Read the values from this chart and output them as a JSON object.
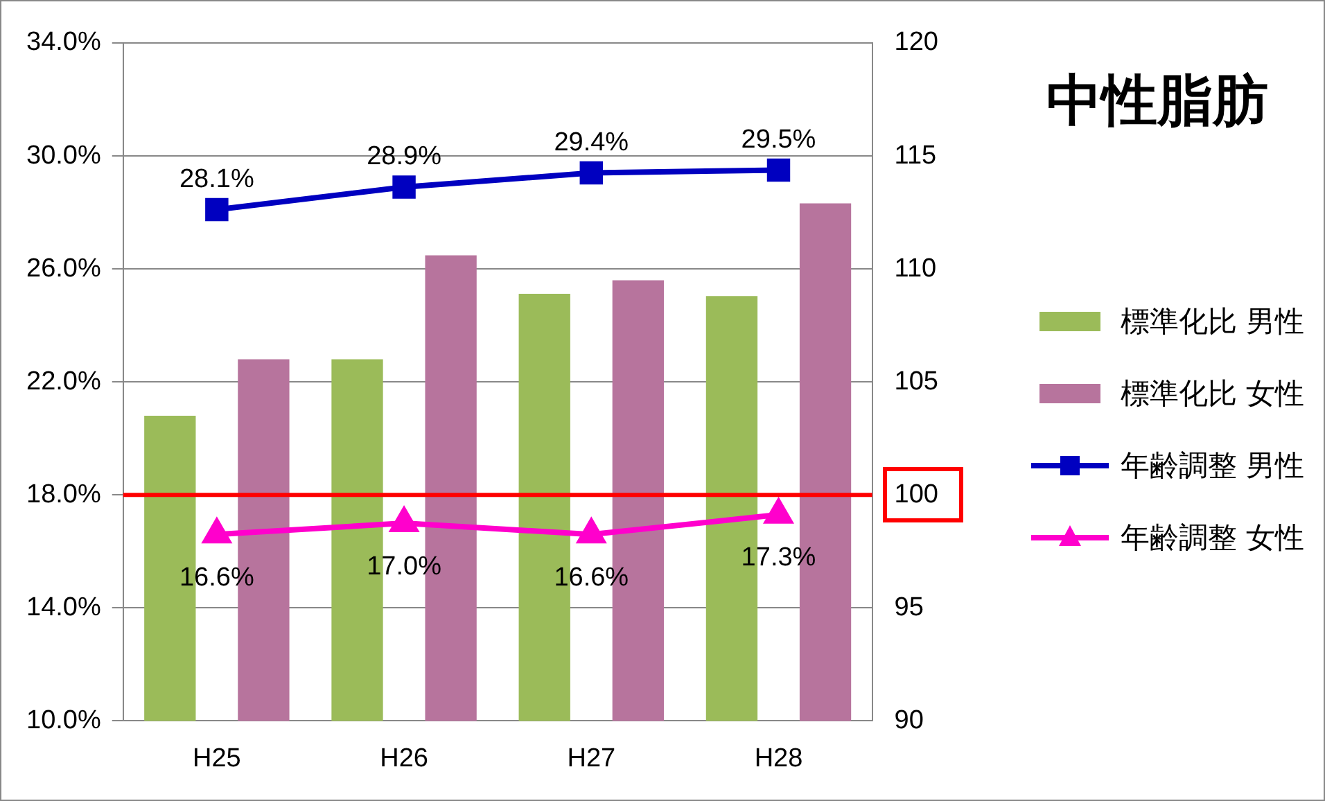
{
  "chart_data": {
    "type": "bar",
    "title": "中性脂肪",
    "categories": [
      "H25",
      "H26",
      "H27",
      "H28"
    ],
    "series": [
      {
        "name": "標準化比 男性",
        "axis": "y2",
        "color": "#9bbb59",
        "values": [
          103.5,
          106.0,
          108.9,
          108.8
        ]
      },
      {
        "name": "標準化比 女性",
        "axis": "y2",
        "color": "#b7749d",
        "values": [
          106.0,
          110.6,
          109.5,
          112.9
        ]
      },
      {
        "name": "年齢調整 男性",
        "type": "line",
        "axis": "y",
        "color": "#0000c0",
        "marker": "square",
        "values": [
          28.1,
          28.9,
          29.4,
          29.5
        ],
        "value_labels": [
          "28.1%",
          "28.9%",
          "29.4%",
          "29.5%"
        ]
      },
      {
        "name": "年齢調整 女性",
        "type": "line",
        "axis": "y",
        "color": "#ff00cc",
        "marker": "triangle",
        "values": [
          16.6,
          17.0,
          16.6,
          17.3
        ],
        "value_labels": [
          "16.6%",
          "17.0%",
          "16.6%",
          "17.3%"
        ]
      }
    ],
    "ylim": [
      10,
      34
    ],
    "yticks": [
      {
        "value": 10,
        "label": "10.0%"
      },
      {
        "value": 14,
        "label": "14.0%"
      },
      {
        "value": 18,
        "label": "18.0%"
      },
      {
        "value": 22,
        "label": "22.0%"
      },
      {
        "value": 26,
        "label": "26.0%"
      },
      {
        "value": 30,
        "label": "30.0%"
      },
      {
        "value": 34,
        "label": "34.0%"
      }
    ],
    "y2lim": [
      90,
      120
    ],
    "y2ticks": [
      90,
      95,
      100,
      105,
      110,
      115,
      120
    ],
    "ref_lines": [
      {
        "axis": "y2",
        "value": 100,
        "color": "#ff0000",
        "line_style": "solid"
      }
    ],
    "grid": "y",
    "legend": "right",
    "line_style": "solid"
  }
}
